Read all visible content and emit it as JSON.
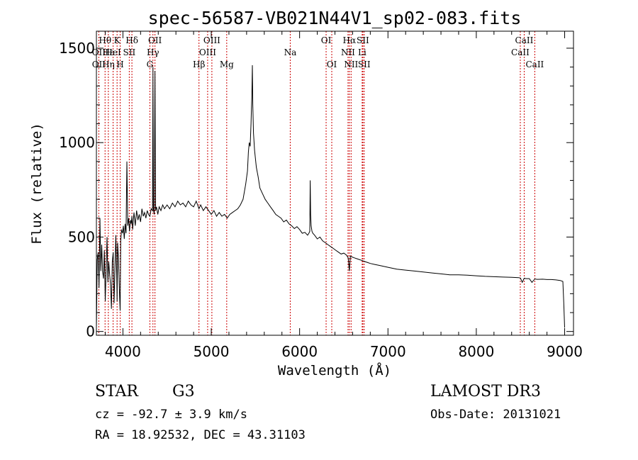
{
  "chart_data": {
    "type": "line",
    "title": "spec-56587-VB021N44V1_sp02-083.fits",
    "xlabel": "Wavelength (Å)",
    "ylabel": "Flux (relative)",
    "xlim": [
      3700,
      9100
    ],
    "ylim": [
      -20,
      1590
    ],
    "x_ticks": [
      4000,
      5000,
      6000,
      7000,
      8000,
      9000
    ],
    "x_tick_labels": [
      "4000",
      "5000",
      "6000",
      "7000",
      "8000",
      "9000"
    ],
    "y_ticks": [
      0,
      500,
      1000,
      1500
    ],
    "y_tick_labels": [
      "0",
      "500",
      "1000",
      "1500"
    ],
    "series": [
      {
        "name": "spectrum",
        "x": [
          3700,
          3710,
          3720,
          3730,
          3740,
          3750,
          3760,
          3770,
          3780,
          3790,
          3800,
          3810,
          3820,
          3830,
          3840,
          3850,
          3860,
          3870,
          3880,
          3890,
          3900,
          3910,
          3920,
          3930,
          3934,
          3940,
          3950,
          3960,
          3969,
          3975,
          3985,
          3995,
          4005,
          4015,
          4025,
          4035,
          4045,
          4055,
          4065,
          4075,
          4085,
          4095,
          4102,
          4110,
          4125,
          4140,
          4155,
          4170,
          4185,
          4200,
          4215,
          4230,
          4245,
          4260,
          4275,
          4290,
          4305,
          4320,
          4335,
          4340,
          4345,
          4355,
          4363,
          4370,
          4380,
          4395,
          4410,
          4430,
          4450,
          4470,
          4500,
          4530,
          4560,
          4590,
          4620,
          4650,
          4680,
          4710,
          4740,
          4770,
          4800,
          4830,
          4861,
          4880,
          4910,
          4940,
          4970,
          5000,
          5030,
          5060,
          5090,
          5120,
          5150,
          5180,
          5210,
          5240,
          5270,
          5300,
          5330,
          5360,
          5390,
          5410,
          5420,
          5430,
          5440,
          5450,
          5455,
          5460,
          5465,
          5470,
          5478,
          5490,
          5510,
          5530,
          5550,
          5580,
          5610,
          5640,
          5670,
          5700,
          5730,
          5760,
          5790,
          5820,
          5850,
          5880,
          5910,
          5940,
          5970,
          6000,
          6030,
          6060,
          6090,
          6105,
          6115,
          6120,
          6125,
          6130,
          6140,
          6150,
          6170,
          6200,
          6230,
          6260,
          6290,
          6320,
          6350,
          6380,
          6410,
          6440,
          6470,
          6500,
          6530,
          6550,
          6563,
          6575,
          6590,
          6620,
          6650,
          6680,
          6710,
          6740,
          6770,
          6800,
          6850,
          6900,
          6950,
          7000,
          7100,
          7200,
          7300,
          7400,
          7500,
          7600,
          7700,
          7800,
          7900,
          8000,
          8100,
          8200,
          8300,
          8400,
          8480,
          8500,
          8520,
          8542,
          8560,
          8600,
          8630,
          8662,
          8690,
          8750,
          8800,
          8850,
          8900,
          8950,
          8980,
          8990,
          9000
        ],
        "values": [
          20,
          380,
          420,
          230,
          600,
          320,
          460,
          320,
          280,
          430,
          160,
          330,
          500,
          260,
          370,
          300,
          250,
          120,
          370,
          420,
          150,
          330,
          510,
          300,
          160,
          470,
          380,
          220,
          110,
          480,
          540,
          520,
          560,
          490,
          570,
          520,
          900,
          560,
          600,
          530,
          590,
          570,
          610,
          540,
          630,
          560,
          640,
          590,
          620,
          580,
          650,
          610,
          630,
          600,
          640,
          620,
          610,
          650,
          640,
          1400,
          650,
          620,
          1380,
          640,
          660,
          620,
          660,
          640,
          670,
          650,
          670,
          650,
          680,
          660,
          690,
          670,
          680,
          660,
          690,
          670,
          660,
          690,
          650,
          670,
          640,
          660,
          640,
          620,
          640,
          610,
          630,
          610,
          620,
          600,
          620,
          630,
          640,
          650,
          670,
          700,
          780,
          850,
          950,
          1000,
          980,
          1100,
          1180,
          1250,
          1410,
          1200,
          1050,
          960,
          870,
          820,
          760,
          730,
          700,
          680,
          660,
          640,
          620,
          610,
          600,
          580,
          590,
          570,
          560,
          545,
          555,
          540,
          520,
          525,
          510,
          520,
          530,
          800,
          620,
          560,
          530,
          520,
          510,
          490,
          500,
          480,
          470,
          460,
          450,
          440,
          430,
          420,
          410,
          415,
          405,
          390,
          320,
          400,
          395,
          390,
          385,
          380,
          375,
          370,
          365,
          360,
          355,
          350,
          345,
          340,
          330,
          325,
          320,
          315,
          310,
          305,
          300,
          300,
          298,
          295,
          292,
          290,
          288,
          287,
          285,
          283,
          260,
          282,
          280,
          280,
          260,
          278,
          276,
          277,
          275,
          275,
          273,
          270,
          265,
          150,
          20
        ]
      }
    ],
    "line_markers": [
      {
        "label": "Hθ",
        "x": 3798,
        "row": 0
      },
      {
        "label": "OII",
        "x": 3727,
        "row": 1
      },
      {
        "label": "OII",
        "x": 3727,
        "row": 2
      },
      {
        "label": "Hε",
        "x": 3835,
        "row": 1
      },
      {
        "label": "Hη",
        "x": 3835,
        "row": 2
      },
      {
        "label": "K",
        "x": 3934,
        "row": 0
      },
      {
        "label": "HeI",
        "x": 3889,
        "row": 1
      },
      {
        "label": "H",
        "x": 3969,
        "row": 2
      },
      {
        "label": "Hδ",
        "x": 4102,
        "row": 0
      },
      {
        "label": "SII",
        "x": 4072,
        "row": 1
      },
      {
        "label": "OII",
        "x": 4363,
        "row": 0
      },
      {
        "label": "Hγ",
        "x": 4340,
        "row": 1
      },
      {
        "label": "G",
        "x": 4305,
        "row": 2
      },
      {
        "label": "Hβ",
        "x": 4861,
        "row": 2
      },
      {
        "label": "OIII",
        "x": 5007,
        "row": 0
      },
      {
        "label": "OIII",
        "x": 4959,
        "row": 1
      },
      {
        "label": "Mg",
        "x": 5175,
        "row": 2
      },
      {
        "label": "Na",
        "x": 5894,
        "row": 1
      },
      {
        "label": "OI",
        "x": 6300,
        "row": 0
      },
      {
        "label": "OI",
        "x": 6364,
        "row": 2
      },
      {
        "label": "Hα",
        "x": 6563,
        "row": 0
      },
      {
        "label": "SII",
        "x": 6716,
        "row": 0
      },
      {
        "label": "NII",
        "x": 6548,
        "row": 1
      },
      {
        "label": "Li",
        "x": 6708,
        "row": 1
      },
      {
        "label": "NII",
        "x": 6583,
        "row": 2
      },
      {
        "label": "SII",
        "x": 6731,
        "row": 2
      },
      {
        "label": "CaII",
        "x": 8542,
        "row": 0
      },
      {
        "label": "CaII",
        "x": 8498,
        "row": 1
      },
      {
        "label": "CaII",
        "x": 8662,
        "row": 2
      }
    ],
    "marker_lines": [
      3727,
      3798,
      3835,
      3889,
      3934,
      3969,
      4072,
      4102,
      4305,
      4340,
      4363,
      4861,
      4959,
      5007,
      5175,
      5894,
      6300,
      6364,
      6548,
      6563,
      6583,
      6708,
      6716,
      6731,
      8498,
      8542,
      8662
    ]
  },
  "footer": {
    "object_class": "STAR",
    "subclass": "G3",
    "survey": "LAMOST DR3",
    "cz": "cz = -92.7 ± 3.9 km/s",
    "obs_date": "Obs-Date: 20131021",
    "coords": "RA =  18.92532, DEC =  43.31103"
  },
  "colors": {
    "marker_line": "#cc0000",
    "spectrum": "#000000"
  }
}
